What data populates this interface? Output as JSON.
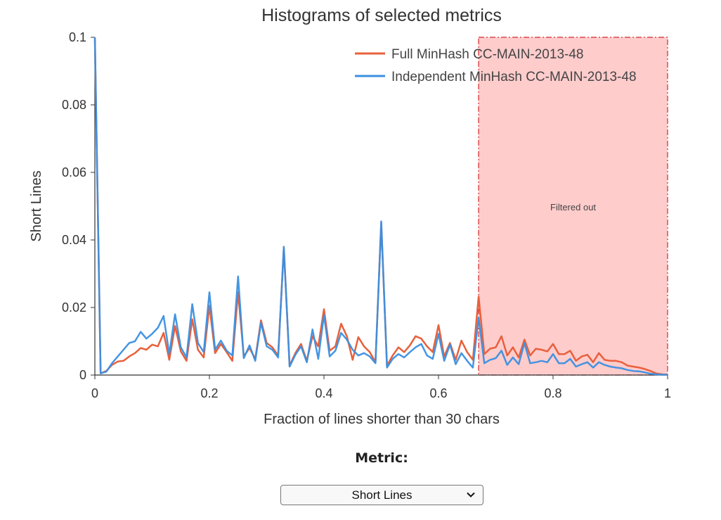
{
  "chart_data": {
    "type": "line",
    "title": "Histograms of selected metrics",
    "xlabel": "Fraction of lines shorter than 30 chars",
    "ylabel": "Short Lines",
    "xlim": [
      0,
      1
    ],
    "ylim": [
      0,
      0.1
    ],
    "xticks": [
      "0",
      "0.2",
      "0.4",
      "0.6",
      "0.8",
      "1"
    ],
    "yticks": [
      "0",
      "0.02",
      "0.04",
      "0.06",
      "0.08",
      "0.1"
    ],
    "legend_position": "top-right",
    "x": [
      0,
      0.01,
      0.02,
      0.03,
      0.04,
      0.05,
      0.06,
      0.07,
      0.08,
      0.09,
      0.1,
      0.11,
      0.12,
      0.13,
      0.14,
      0.15,
      0.16,
      0.17,
      0.18,
      0.19,
      0.2,
      0.21,
      0.22,
      0.23,
      0.24,
      0.25,
      0.26,
      0.27,
      0.28,
      0.29,
      0.3,
      0.31,
      0.32,
      0.33,
      0.34,
      0.35,
      0.36,
      0.37,
      0.38,
      0.39,
      0.4,
      0.41,
      0.42,
      0.43,
      0.44,
      0.45,
      0.46,
      0.47,
      0.48,
      0.49,
      0.5,
      0.51,
      0.52,
      0.53,
      0.54,
      0.55,
      0.56,
      0.57,
      0.58,
      0.59,
      0.6,
      0.61,
      0.62,
      0.63,
      0.64,
      0.65,
      0.66,
      0.67,
      0.68,
      0.69,
      0.7,
      0.71,
      0.72,
      0.73,
      0.74,
      0.75,
      0.76,
      0.77,
      0.78,
      0.79,
      0.8,
      0.81,
      0.82,
      0.83,
      0.84,
      0.85,
      0.86,
      0.87,
      0.88,
      0.89,
      0.9,
      0.91,
      0.92,
      0.93,
      0.94,
      0.95,
      0.96,
      0.97,
      0.98,
      0.99,
      1.0
    ],
    "series": [
      {
        "name": "Full MinHash CC-MAIN-2013-48",
        "color": "#e8603c",
        "values": [
          0.1,
          0.0005,
          0.0012,
          0.003,
          0.004,
          0.0042,
          0.0055,
          0.0065,
          0.008,
          0.0075,
          0.009,
          0.0085,
          0.0125,
          0.0045,
          0.0145,
          0.007,
          0.0042,
          0.0165,
          0.0075,
          0.0052,
          0.0205,
          0.0065,
          0.0092,
          0.0068,
          0.0042,
          0.0245,
          0.0055,
          0.008,
          0.0048,
          0.0162,
          0.0095,
          0.0082,
          0.0058,
          0.0375,
          0.0028,
          0.0065,
          0.0092,
          0.0042,
          0.0115,
          0.0085,
          0.0195,
          0.0072,
          0.0085,
          0.0152,
          0.0115,
          0.0045,
          0.0112,
          0.0085,
          0.0068,
          0.0038,
          0.045,
          0.0028,
          0.0058,
          0.0082,
          0.0068,
          0.0088,
          0.0115,
          0.0108,
          0.0085,
          0.0068,
          0.0148,
          0.0055,
          0.0095,
          0.0045,
          0.0102,
          0.0068,
          0.0045,
          0.0232,
          0.0062,
          0.0078,
          0.0082,
          0.0115,
          0.0058,
          0.0082,
          0.0052,
          0.0105,
          0.0058,
          0.0078,
          0.0075,
          0.007,
          0.0092,
          0.0062,
          0.0062,
          0.0072,
          0.0042,
          0.0055,
          0.006,
          0.0038,
          0.0065,
          0.0045,
          0.0042,
          0.0042,
          0.0038,
          0.0028,
          0.0025,
          0.0022,
          0.0018,
          0.0012,
          0.0005,
          0.0002,
          0.0001
        ]
      },
      {
        "name": "Independent MinHash CC-MAIN-2013-48",
        "color": "#3b8fe0",
        "values": [
          0.1,
          0.0005,
          0.001,
          0.0035,
          0.0055,
          0.0075,
          0.0095,
          0.01,
          0.0128,
          0.0108,
          0.0122,
          0.014,
          0.0175,
          0.0062,
          0.018,
          0.0082,
          0.0052,
          0.021,
          0.0095,
          0.0068,
          0.0245,
          0.0075,
          0.0102,
          0.0072,
          0.0058,
          0.0292,
          0.005,
          0.0088,
          0.0042,
          0.0155,
          0.0085,
          0.0075,
          0.0052,
          0.038,
          0.0025,
          0.006,
          0.0085,
          0.0038,
          0.0135,
          0.0048,
          0.0178,
          0.0055,
          0.0072,
          0.0125,
          0.0105,
          0.0075,
          0.0058,
          0.0065,
          0.0055,
          0.0035,
          0.0455,
          0.0022,
          0.0048,
          0.0062,
          0.0052,
          0.0068,
          0.0082,
          0.0092,
          0.0058,
          0.0048,
          0.0122,
          0.0042,
          0.009,
          0.0032,
          0.0065,
          0.0042,
          0.0022,
          0.017,
          0.0035,
          0.0045,
          0.005,
          0.0072,
          0.003,
          0.0052,
          0.0032,
          0.0095,
          0.0035,
          0.0038,
          0.0042,
          0.0038,
          0.0062,
          0.0035,
          0.0035,
          0.0048,
          0.0025,
          0.0032,
          0.0038,
          0.0022,
          0.0038,
          0.003,
          0.0025,
          0.0022,
          0.002,
          0.0015,
          0.0012,
          0.0011,
          0.0008,
          0.0004,
          0.0002,
          0.0001,
          0.0001
        ]
      }
    ],
    "annotation": {
      "label": "Filtered out",
      "x_range": [
        0.67,
        1.0
      ],
      "fill_color": "#ffcccc",
      "border_color": "#d62728"
    }
  },
  "controls": {
    "metric_label": "Metric:",
    "metric_selected": "Short Lines",
    "dropdown_icon": "chevron-down-icon"
  }
}
